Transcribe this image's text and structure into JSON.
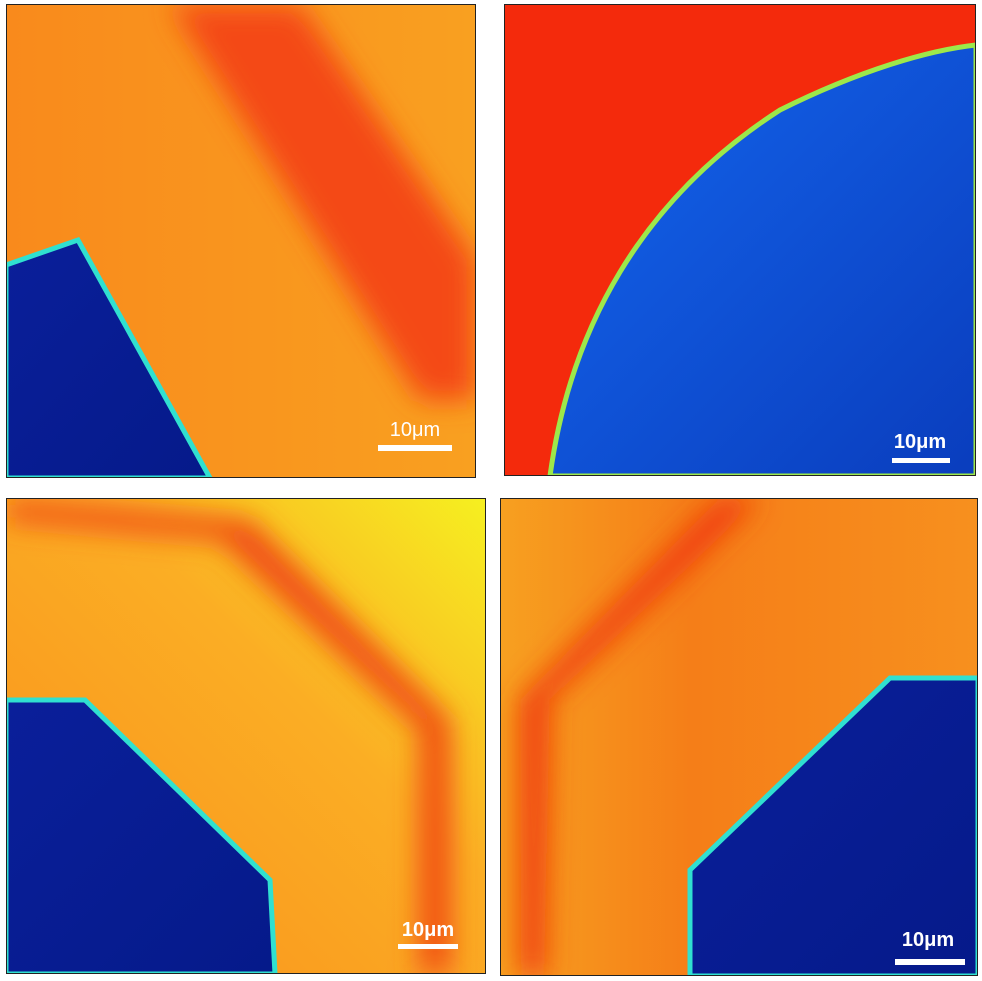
{
  "panels": [
    {
      "scale_bar": "10μm"
    },
    {
      "scale_bar": "10μm"
    },
    {
      "scale_bar": "10μm"
    },
    {
      "scale_bar": "10μm"
    }
  ]
}
